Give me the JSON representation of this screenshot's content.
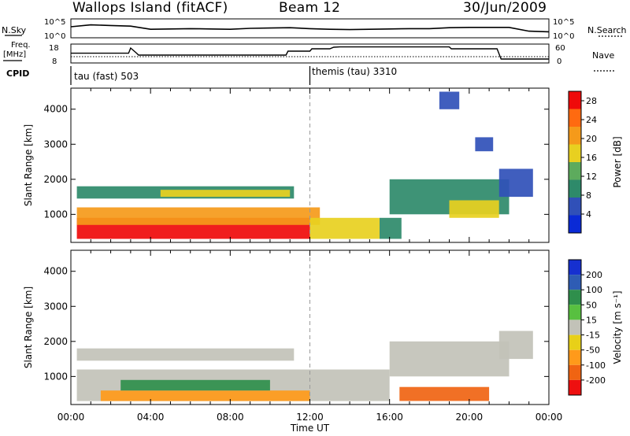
{
  "header": {
    "station": "Wallops Island (fitACF)",
    "beam": "Beam 12",
    "date": "30/Jun/2009"
  },
  "side_labels": {
    "nsky": "N.Sky",
    "nsearch": "N.Search",
    "freq_line1": "Freq.",
    "freq_line2": "[MHz]",
    "nave": "Nave",
    "cpid": "CPID"
  },
  "cpid_segments": [
    {
      "label": "tau (fast) 503",
      "start_hour": 0
    },
    {
      "label": "themis (tau) 3310",
      "start_hour": 12
    }
  ],
  "chart_data": [
    {
      "type": "line",
      "panel": "noise",
      "ylabel_left": "N.Sky",
      "ylabel_right": "N.Search",
      "y_ticks_left": [
        "10^5",
        "10^0"
      ],
      "y_ticks_right": [
        "10^5",
        "10^0"
      ],
      "y_scale": "log",
      "x_hours": [
        0,
        1,
        2,
        3,
        4,
        5,
        6,
        7,
        8,
        9,
        10,
        11,
        12,
        13,
        14,
        15,
        16,
        17,
        18,
        19,
        20,
        21,
        22,
        23,
        24
      ],
      "series": [
        {
          "style": "solid",
          "values_log10": [
            3.0,
            3.6,
            3.4,
            3.2,
            2.2,
            2.3,
            2.4,
            2.3,
            2.2,
            2.5,
            2.6,
            2.7,
            2.4,
            2.2,
            2.1,
            2.2,
            2.3,
            2.4,
            2.4,
            2.7,
            2.8,
            2.8,
            2.8,
            1.6,
            1.4
          ]
        }
      ]
    },
    {
      "type": "line",
      "panel": "frequency",
      "ylabel_left": "Freq. [MHz]",
      "ylabel_right": "Nave",
      "y_ticks_left": [
        18,
        8
      ],
      "y_ticks_right": [
        60,
        0
      ],
      "xlim_hours": [
        0,
        24
      ],
      "series": [
        {
          "style": "solid",
          "y_axis": "left",
          "x": [
            0.0,
            2.9,
            3.0,
            3.3,
            3.4,
            10.8,
            10.9,
            12.0,
            12.1,
            13.0,
            13.2,
            13.5,
            19.0,
            19.1,
            21.4,
            21.6,
            23.5,
            24.0
          ],
          "y": [
            13.2,
            13.2,
            16.5,
            13.2,
            12.0,
            12.0,
            14.5,
            14.5,
            16.0,
            16.0,
            17.0,
            17.2,
            17.2,
            16.0,
            16.0,
            9.5,
            9.5,
            9.5
          ]
        },
        {
          "style": "dotted",
          "y_axis": "right",
          "x": [
            0.0,
            24.0
          ],
          "y": [
            18,
            18
          ]
        }
      ]
    },
    {
      "type": "heatmap",
      "panel": "power",
      "ylabel": "Slant Range [km]",
      "yticks": [
        1000,
        2000,
        3000,
        4000
      ],
      "ylim": [
        200,
        4600
      ],
      "xlim_hours": [
        0,
        24
      ],
      "colorbar": {
        "label": "Power [dB]",
        "ticks": [
          4,
          8,
          12,
          16,
          20,
          24,
          28
        ],
        "colors": [
          "#0a2ad6",
          "#3050b8",
          "#2e8a6a",
          "#5dab5d",
          "#e8d020",
          "#f59a1a",
          "#ff6a10",
          "#ef0a0a"
        ],
        "range": [
          0,
          30
        ]
      },
      "regions": [
        {
          "t0": 0.3,
          "t1": 12.0,
          "r0": 300,
          "r1": 900,
          "value": 27
        },
        {
          "t0": 0.3,
          "t1": 12.5,
          "r0": 700,
          "r1": 1200,
          "value": 22
        },
        {
          "t0": 12.0,
          "t1": 15.5,
          "r0": 300,
          "r1": 900,
          "value": 17
        },
        {
          "t0": 15.5,
          "t1": 16.6,
          "r0": 300,
          "r1": 900,
          "value": 10
        },
        {
          "t0": 0.3,
          "t1": 11.2,
          "r0": 1450,
          "r1": 1800,
          "value": 8
        },
        {
          "t0": 4.5,
          "t1": 11.0,
          "r0": 1500,
          "r1": 1700,
          "value": 16
        },
        {
          "t0": 16.0,
          "t1": 22.0,
          "r0": 1000,
          "r1": 2000,
          "value": 8
        },
        {
          "t0": 19.0,
          "t1": 21.5,
          "r0": 900,
          "r1": 1400,
          "value": 18
        },
        {
          "t0": 21.5,
          "t1": 23.2,
          "r0": 1500,
          "r1": 2300,
          "value": 6
        },
        {
          "t0": 20.3,
          "t1": 21.2,
          "r0": 2800,
          "r1": 3200,
          "value": 5
        },
        {
          "t0": 18.5,
          "t1": 19.5,
          "r0": 4000,
          "r1": 4500,
          "value": 6
        }
      ]
    },
    {
      "type": "heatmap",
      "panel": "velocity",
      "ylabel": "Slant Range [km]",
      "yticks": [
        1000,
        2000,
        3000,
        4000
      ],
      "ylim": [
        200,
        4600
      ],
      "xlim_hours": [
        0,
        24
      ],
      "xlabel": "Time UT",
      "xticks": [
        "00:00",
        "04:00",
        "08:00",
        "12:00",
        "16:00",
        "20:00",
        "00:00"
      ],
      "colorbar": {
        "label": "Velocity [m s⁻¹]",
        "ticks": [
          200,
          100,
          50,
          15,
          -15,
          -50,
          -100,
          -200
        ],
        "colors": [
          "#1630d0",
          "#2e5cb4",
          "#2f8f4c",
          "#58c040",
          "#c2c2b8",
          "#e8d018",
          "#ff9a1a",
          "#f06412",
          "#ee1010"
        ],
        "range": [
          -250,
          250
        ]
      },
      "regions": [
        {
          "t0": 0.3,
          "t1": 16.0,
          "r0": 300,
          "r1": 1200,
          "value": 0
        },
        {
          "t0": 1.5,
          "t1": 12.0,
          "r0": 300,
          "r1": 600,
          "value": -60
        },
        {
          "t0": 2.5,
          "t1": 10.0,
          "r0": 600,
          "r1": 900,
          "value": 60
        },
        {
          "t0": 0.3,
          "t1": 11.2,
          "r0": 1450,
          "r1": 1800,
          "value": 0
        },
        {
          "t0": 16.0,
          "t1": 22.0,
          "r0": 1000,
          "r1": 2000,
          "value": 0
        },
        {
          "t0": 21.5,
          "t1": 23.2,
          "r0": 1500,
          "r1": 2300,
          "value": 0
        },
        {
          "t0": 16.5,
          "t1": 21.0,
          "r0": 300,
          "r1": 700,
          "value": -120
        }
      ]
    }
  ]
}
